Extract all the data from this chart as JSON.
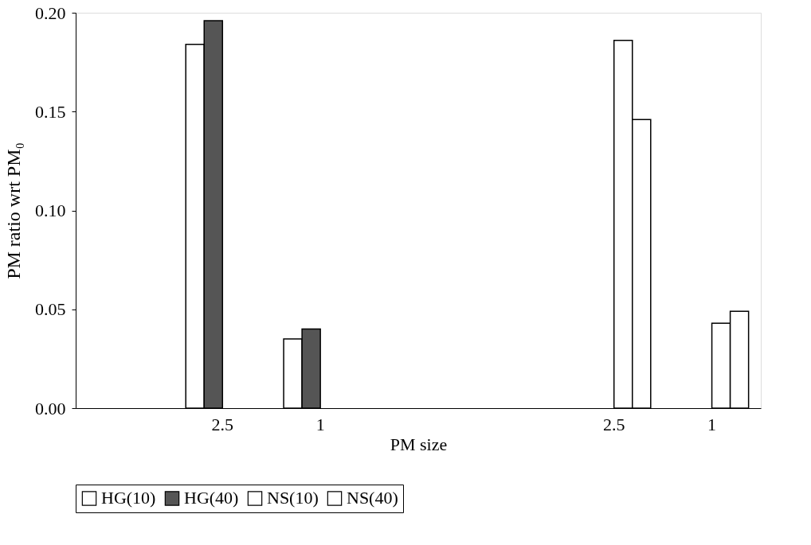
{
  "chart_data": {
    "type": "bar",
    "xlabel": "PM size",
    "ylabel": "PM ratio wrt PM₀",
    "categories": [
      null,
      "2.5",
      "1",
      null,
      null,
      "2.5",
      "1"
    ],
    "series": [
      {
        "name": "HG(10)",
        "color": "#ffffff",
        "values": [
          null,
          0.184,
          0.035,
          null,
          null,
          null,
          null
        ]
      },
      {
        "name": "HG(40)",
        "color": "#555555",
        "values": [
          null,
          0.196,
          0.04,
          null,
          null,
          null,
          null
        ]
      },
      {
        "name": "NS(10)",
        "color": "#ffffff",
        "values": [
          null,
          null,
          null,
          null,
          null,
          0.186,
          0.043
        ]
      },
      {
        "name": "NS(40)",
        "color": "#ffffff",
        "values": [
          null,
          null,
          null,
          null,
          null,
          0.146,
          0.049
        ]
      }
    ],
    "ylim": [
      0,
      0.2
    ],
    "yticks": [
      {
        "value": 0,
        "label": "0.00"
      },
      {
        "value": 0.05,
        "label": "0.05"
      },
      {
        "value": 0.1,
        "label": "0.10"
      },
      {
        "value": 0.15,
        "label": "0.15"
      },
      {
        "value": 0.2,
        "label": "0.20"
      }
    ],
    "legend": "bottom",
    "grid": false
  }
}
